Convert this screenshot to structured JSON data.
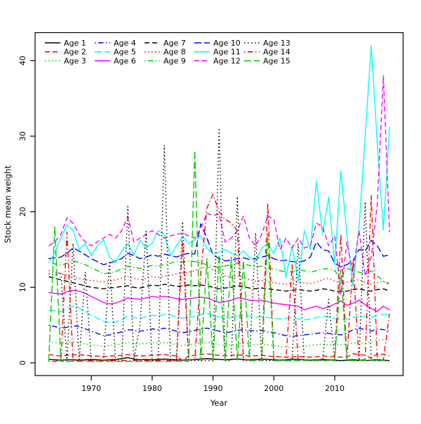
{
  "figure": {
    "background": "#FFFFFF",
    "box_color": "#000000"
  },
  "chart_data": {
    "type": "line",
    "title": "",
    "xlabel": "Year",
    "ylabel": "Stock mean weight",
    "grid": false,
    "legend_position": "top-left inside plot, 5 columns, no border",
    "x_ticks": [
      1970,
      1980,
      1990,
      2000,
      2010
    ],
    "y_ticks": [
      0,
      10,
      20,
      30,
      40
    ],
    "xlim": [
      1960.76,
      2021.24
    ],
    "ylim": [
      -1.68,
      43.7
    ],
    "x": [
      1963,
      1964,
      1965,
      1966,
      1967,
      1968,
      1969,
      1970,
      1971,
      1972,
      1973,
      1974,
      1975,
      1976,
      1977,
      1978,
      1979,
      1980,
      1981,
      1982,
      1983,
      1984,
      1985,
      1986,
      1987,
      1988,
      1989,
      1990,
      1991,
      1992,
      1993,
      1994,
      1995,
      1996,
      1997,
      1998,
      1999,
      2000,
      2001,
      2002,
      2003,
      2004,
      2005,
      2006,
      2007,
      2008,
      2009,
      2010,
      2011,
      2012,
      2013,
      2014,
      2015,
      2016,
      2017,
      2018,
      2019
    ],
    "series": [
      {
        "name": "Age 1",
        "color": "#000000",
        "linetype": "solid",
        "values": [
          0.45,
          0.4,
          0.35,
          0.4,
          0.4,
          0.35,
          0.4,
          0.45,
          0.4,
          0.35,
          0.4,
          0.45,
          0.55,
          0.7,
          0.5,
          0.4,
          0.45,
          0.4,
          0.45,
          0.5,
          0.45,
          0.4,
          0.35,
          0.4,
          0.45,
          0.5,
          0.55,
          0.5,
          0.45,
          0.4,
          0.45,
          0.5,
          0.45,
          0.4,
          0.45,
          0.5,
          0.45,
          0.4,
          0.35,
          0.4,
          0.5,
          0.45,
          0.4,
          0.35,
          0.4,
          0.45,
          0.4,
          0.35,
          0.3,
          0.35,
          0.4,
          0.35,
          0.3,
          0.35,
          0.4,
          0.35,
          0.3
        ]
      },
      {
        "name": "Age 2",
        "color": "#FF0000",
        "linetype": "dashed",
        "values": [
          1.1,
          1.0,
          0.9,
          1.0,
          1.05,
          1.1,
          1.0,
          0.95,
          0.9,
          0.85,
          0.9,
          0.95,
          1.0,
          1.1,
          1.0,
          0.9,
          0.95,
          1.0,
          1.05,
          1.1,
          1.0,
          0.9,
          0.3,
          0.9,
          1.0,
          1.1,
          1.2,
          1.1,
          1.0,
          0.95,
          1.0,
          1.05,
          1.0,
          0.9,
          0.95,
          1.0,
          0.9,
          0.85,
          0.8,
          0.75,
          0.8,
          0.85,
          0.8,
          0.75,
          0.8,
          0.9,
          0.85,
          0.8,
          0.75,
          0.8,
          1.2,
          1.1,
          1.0,
          0.6,
          1.2,
          1.1,
          0.9
        ]
      },
      {
        "name": "Age 3",
        "color": "#00CD00",
        "linetype": "dotted",
        "values": [
          2.8,
          2.7,
          2.6,
          2.7,
          2.8,
          2.7,
          2.5,
          2.4,
          2.3,
          2.2,
          2.3,
          2.4,
          2.5,
          2.7,
          2.6,
          2.5,
          2.6,
          2.7,
          2.6,
          2.7,
          2.6,
          2.4,
          2.3,
          2.4,
          2.5,
          2.6,
          2.7,
          2.6,
          2.4,
          2.3,
          2.4,
          2.5,
          2.6,
          2.5,
          2.4,
          2.5,
          2.4,
          2.3,
          2.2,
          2.1,
          2.0,
          2.1,
          2.2,
          2.3,
          2.4,
          2.5,
          2.4,
          2.5,
          2.4,
          2.5,
          2.6,
          2.7,
          2.6,
          2.8,
          3.0,
          3.1,
          3.0
        ]
      },
      {
        "name": "Age 4",
        "color": "#0000FF",
        "linetype": "dotdash",
        "values": [
          5.0,
          4.8,
          4.6,
          4.7,
          4.9,
          4.8,
          4.5,
          4.2,
          3.9,
          3.6,
          3.7,
          3.9,
          4.1,
          4.4,
          4.3,
          4.2,
          4.3,
          4.5,
          4.4,
          4.6,
          4.4,
          4.2,
          4.0,
          4.1,
          4.3,
          4.5,
          4.6,
          4.4,
          4.2,
          4.0,
          4.1,
          4.3,
          4.4,
          4.3,
          4.2,
          4.3,
          4.1,
          4.0,
          3.8,
          3.6,
          3.5,
          3.6,
          3.7,
          3.8,
          3.9,
          4.0,
          3.9,
          3.8,
          3.7,
          3.9,
          4.4,
          4.6,
          4.4,
          4.2,
          4.5,
          4.4,
          4.2
        ]
      },
      {
        "name": "Age 5",
        "color": "#00FFFF",
        "linetype": "longdash",
        "values": [
          7.0,
          6.9,
          6.8,
          7.2,
          7.5,
          7.3,
          6.8,
          6.3,
          5.9,
          5.5,
          5.3,
          5.4,
          5.7,
          6.2,
          6.0,
          5.9,
          6.1,
          6.3,
          6.2,
          6.4,
          6.3,
          6.1,
          5.9,
          6.0,
          6.2,
          6.4,
          6.5,
          6.3,
          6.1,
          5.9,
          6.0,
          6.2,
          6.3,
          6.2,
          6.0,
          6.1,
          6.0,
          5.9,
          5.8,
          5.9,
          6.0,
          5.8,
          5.7,
          5.8,
          6.0,
          6.2,
          6.1,
          5.9,
          5.7,
          5.8,
          6.0,
          6.2,
          6.1,
          6.0,
          6.3,
          6.4,
          6.4
        ]
      },
      {
        "name": "Age 6",
        "color": "#FF00FF",
        "linetype": "solid",
        "values": [
          9.3,
          9.2,
          9.1,
          9.4,
          9.6,
          9.5,
          9.2,
          8.8,
          8.4,
          8.0,
          7.8,
          7.9,
          8.2,
          8.6,
          8.5,
          8.4,
          8.6,
          8.8,
          8.7,
          8.8,
          8.7,
          8.5,
          8.4,
          8.5,
          8.6,
          8.7,
          8.6,
          8.3,
          8.0,
          8.1,
          8.3,
          8.6,
          8.5,
          8.3,
          8.2,
          8.3,
          8.1,
          7.9,
          7.8,
          7.7,
          7.6,
          7.5,
          7.0,
          7.3,
          7.5,
          7.2,
          7.4,
          7.8,
          8.2,
          7.6,
          7.9,
          8.3,
          7.7,
          7.2,
          6.8,
          7.5,
          7.0
        ]
      },
      {
        "name": "Age 7",
        "color": "#000000",
        "linetype": "dashed",
        "values": [
          11.4,
          11.2,
          11.0,
          10.8,
          10.6,
          10.4,
          10.2,
          10.0,
          9.9,
          9.8,
          9.9,
          10.0,
          10.1,
          10.2,
          10.0,
          9.9,
          10.1,
          10.3,
          10.2,
          10.4,
          10.3,
          10.1,
          10.2,
          10.3,
          10.2,
          10.3,
          10.2,
          10.0,
          9.8,
          9.9,
          10.0,
          10.2,
          10.1,
          9.9,
          9.8,
          9.9,
          9.8,
          9.7,
          9.6,
          9.5,
          9.6,
          9.7,
          9.6,
          9.5,
          9.6,
          9.8,
          9.7,
          9.5,
          9.4,
          9.5,
          9.7,
          9.8,
          9.6,
          9.5,
          9.7,
          9.8,
          9.5
        ]
      },
      {
        "name": "Age 8",
        "color": "#FF0000",
        "linetype": "dotted",
        "values": [
          12.2,
          12.0,
          11.8,
          11.6,
          11.4,
          11.2,
          11.0,
          10.9,
          10.8,
          10.7,
          10.8,
          11.0,
          11.2,
          11.4,
          11.2,
          11.0,
          11.2,
          11.4,
          11.3,
          11.5,
          11.6,
          11.8,
          11.9,
          12.0,
          12.2,
          12.5,
          12.8,
          12.3,
          11.8,
          11.5,
          11.3,
          11.5,
          11.3,
          11.0,
          10.8,
          10.9,
          10.7,
          10.6,
          10.5,
          10.4,
          10.5,
          10.7,
          10.6,
          10.5,
          10.7,
          11.0,
          11.2,
          10.8,
          10.5,
          10.7,
          10.9,
          11.0,
          10.7,
          10.4,
          10.6,
          10.8,
          10.3
        ]
      },
      {
        "name": "Age 9",
        "color": "#00CD00",
        "linetype": "dotdash",
        "values": [
          13.3,
          13.1,
          12.9,
          13.2,
          13.5,
          13.3,
          13.0,
          12.6,
          12.2,
          11.8,
          11.9,
          12.1,
          12.4,
          12.8,
          12.6,
          12.5,
          12.7,
          12.9,
          12.8,
          13.0,
          13.2,
          13.4,
          13.3,
          13.5,
          13.4,
          13.2,
          13.0,
          12.8,
          12.6,
          12.8,
          13.0,
          13.2,
          13.1,
          12.9,
          12.7,
          12.8,
          12.6,
          12.4,
          12.2,
          12.0,
          12.1,
          12.3,
          12.2,
          12.0,
          12.2,
          12.4,
          12.5,
          12.2,
          11.2,
          12.5,
          12.3,
          12.0,
          11.8,
          12.2,
          11.5,
          10.8,
          10.5
        ]
      },
      {
        "name": "Age 10",
        "color": "#0000FF",
        "linetype": "longdash",
        "values": [
          13.8,
          13.9,
          14.0,
          14.5,
          15.2,
          14.8,
          14.3,
          13.8,
          13.4,
          13.0,
          13.2,
          13.5,
          13.8,
          14.5,
          14.2,
          13.8,
          14.0,
          14.3,
          14.1,
          14.4,
          14.2,
          14.0,
          14.3,
          14.5,
          14.4,
          18.4,
          16.5,
          14.3,
          13.8,
          13.5,
          13.6,
          13.8,
          13.9,
          13.7,
          13.8,
          14.0,
          14.2,
          13.8,
          13.5,
          13.6,
          13.4,
          13.3,
          13.5,
          14.0,
          16.0,
          15.0,
          14.8,
          13.2,
          12.7,
          13.0,
          13.5,
          15.0,
          14.8,
          16.2,
          15.5,
          14.1,
          14.3
        ]
      },
      {
        "name": "Age 11",
        "color": "#00FFFF",
        "linetype": "solid",
        "values": [
          13.2,
          14.5,
          16.5,
          18.3,
          17.5,
          15.0,
          15.8,
          14.2,
          15.5,
          16.3,
          14.0,
          13.3,
          14.8,
          15.8,
          14.3,
          16.2,
          15.2,
          15.8,
          17.5,
          17.0,
          14.2,
          15.5,
          16.7,
          15.8,
          16.3,
          16.8,
          15.2,
          14.4,
          14.6,
          15.0,
          14.5,
          14.2,
          14.8,
          14.0,
          13.5,
          15.2,
          15.8,
          14.5,
          16.5,
          11.3,
          15.5,
          10.8,
          17.5,
          15.0,
          24.0,
          17.1,
          21.9,
          13.0,
          25.4,
          17.0,
          10.2,
          18.0,
          30.0,
          42.0,
          29.0,
          17.6,
          31.2
        ]
      },
      {
        "name": "Age 12",
        "color": "#FF00FF",
        "linetype": "dashed",
        "values": [
          15.5,
          16.0,
          17.0,
          19.2,
          18.5,
          17.0,
          16.0,
          15.5,
          16.0,
          16.5,
          17.0,
          16.5,
          17.5,
          19.3,
          16.0,
          16.5,
          17.0,
          17.5,
          17.0,
          16.5,
          16.8,
          17.0,
          17.2,
          16.8,
          16.5,
          17.8,
          19.8,
          19.5,
          19.7,
          16.0,
          16.5,
          17.5,
          19.4,
          16.5,
          15.5,
          17.0,
          19.5,
          19.0,
          15.0,
          16.5,
          15.2,
          16.5,
          15.2,
          15.5,
          18.5,
          18.0,
          15.5,
          16.8,
          9.0,
          16.0,
          12.0,
          17.5,
          11.5,
          14.0,
          21.0,
          38.0,
          17.3
        ]
      },
      {
        "name": "Age 13",
        "color": "#000000",
        "linetype": "dotted",
        "values": [
          11.8,
          11.6,
          12.0,
          0.2,
          15.8,
          0.2,
          12.0,
          0.2,
          0.2,
          0.2,
          13.5,
          0.2,
          0.3,
          20.7,
          0.3,
          5.0,
          17.4,
          0.3,
          0.3,
          28.8,
          0.3,
          0.3,
          18.7,
          0.3,
          0.3,
          0.3,
          0.3,
          0.3,
          31.1,
          0.3,
          0.3,
          22.0,
          0.3,
          0.3,
          17.2,
          0.3,
          0.3,
          0.3,
          0.3,
          0.3,
          0.3,
          15.8,
          0.3,
          0.3,
          0.3,
          0.3,
          8.4,
          0.3,
          0.3,
          0.3,
          0.3,
          0.3,
          21.3,
          0.3,
          0.3,
          0.3,
          0.3
        ]
      },
      {
        "name": "Age 14",
        "color": "#FF0000",
        "linetype": "dotdash",
        "values": [
          0.2,
          0.2,
          0.3,
          17.3,
          0.3,
          0.3,
          0.3,
          0.3,
          0.3,
          0.3,
          0.3,
          0.3,
          0.3,
          0.3,
          0.3,
          0.3,
          0.3,
          0.3,
          0.3,
          0.3,
          0.3,
          0.3,
          16.0,
          0.4,
          0.4,
          12.0,
          20.5,
          22.3,
          20.0,
          19.0,
          18.5,
          17.5,
          0.4,
          0.4,
          0.4,
          0.4,
          21.1,
          0.4,
          0.4,
          0.4,
          13.0,
          0.4,
          0.4,
          0.4,
          0.4,
          0.4,
          0.4,
          0.4,
          17.0,
          0.4,
          13.5,
          0.4,
          0.4,
          22.2,
          0.4,
          0.4,
          6.5
        ]
      },
      {
        "name": "Age 15",
        "color": "#00CD00",
        "linetype": "longdash",
        "values": [
          0.2,
          18.0,
          0.2,
          0.2,
          0.2,
          0.2,
          0.2,
          0.2,
          0.2,
          0.2,
          0.2,
          0.2,
          0.2,
          0.2,
          0.2,
          0.2,
          0.2,
          0.2,
          0.2,
          0.2,
          0.2,
          0.2,
          0.2,
          0.2,
          28.1,
          0.3,
          13.8,
          0.3,
          14.3,
          0.3,
          14.0,
          0.3,
          13.5,
          0.3,
          0.3,
          0.3,
          17.0,
          0.3,
          0.3,
          0.3,
          0.3,
          0.3,
          0.3,
          0.3,
          0.3,
          0.3,
          0.3,
          0.3,
          12.3,
          0.3,
          0.3,
          0.3,
          0.3,
          0.3,
          0.3,
          0.3,
          0.2
        ]
      }
    ]
  }
}
